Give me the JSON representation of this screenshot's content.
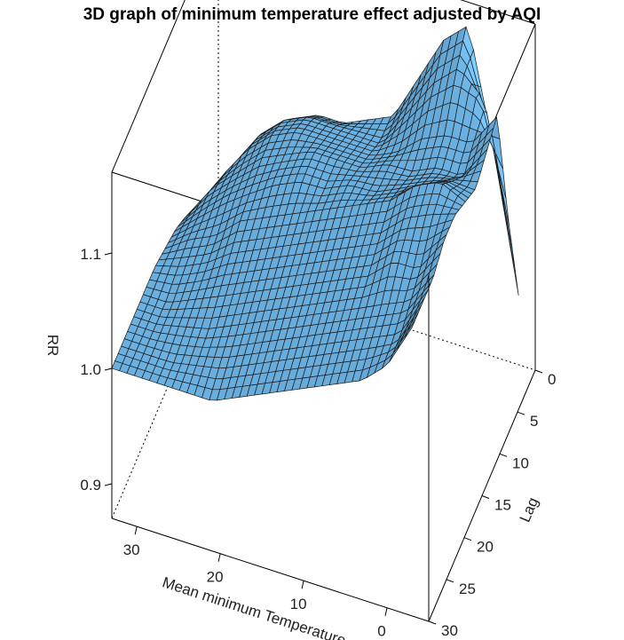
{
  "chart_data": {
    "type": "surface3d",
    "title": "3D graph of minimum temperature effect adjusted by AQI",
    "xlabel": "Mean minimum Temperature",
    "ylabel": "Lag",
    "zlabel": "RR",
    "x_ticks": [
      30,
      20,
      10,
      0
    ],
    "y_ticks": [
      0,
      5,
      10,
      15,
      20,
      25,
      30
    ],
    "z_ticks": [
      "0.9",
      "1.0",
      "1.1"
    ],
    "xlim": [
      -5,
      33
    ],
    "ylim": [
      0,
      30
    ],
    "zlim": [
      0.87,
      1.17
    ],
    "surface_color": "#6ab0e0",
    "mesh_color": "#1a1a1a",
    "temperature_grid": [
      33,
      30,
      27,
      24,
      21,
      18,
      15,
      12,
      9,
      6,
      3,
      0,
      -3
    ],
    "lag_grid": [
      0,
      3,
      6,
      9,
      12,
      15,
      18,
      21,
      24,
      27,
      30
    ],
    "rr": [
      [
        0.895,
        0.93,
        0.96,
        0.98,
        0.99,
        0.995,
        1.0,
        1.0,
        1.0,
        1.0,
        1.0
      ],
      [
        0.96,
        0.98,
        1.0,
        1.01,
        1.01,
        1.01,
        1.005,
        1.0,
        1.0,
        1.0,
        1.0
      ],
      [
        1.0,
        1.02,
        1.03,
        1.03,
        1.03,
        1.02,
        1.015,
        1.01,
        1.005,
        1.0,
        1.0
      ],
      [
        1.02,
        1.04,
        1.05,
        1.05,
        1.045,
        1.04,
        1.03,
        1.02,
        1.01,
        1.005,
        1.0
      ],
      [
        1.03,
        1.05,
        1.06,
        1.06,
        1.06,
        1.05,
        1.04,
        1.03,
        1.02,
        1.01,
        1.0
      ],
      [
        1.03,
        1.05,
        1.06,
        1.07,
        1.07,
        1.06,
        1.05,
        1.04,
        1.03,
        1.02,
        1.01
      ],
      [
        1.04,
        1.05,
        1.06,
        1.07,
        1.07,
        1.07,
        1.06,
        1.05,
        1.04,
        1.03,
        1.02
      ],
      [
        1.05,
        1.05,
        1.06,
        1.07,
        1.08,
        1.08,
        1.07,
        1.06,
        1.05,
        1.04,
        1.03
      ],
      [
        1.09,
        1.08,
        1.07,
        1.08,
        1.08,
        1.09,
        1.08,
        1.07,
        1.06,
        1.05,
        1.04
      ],
      [
        1.13,
        1.11,
        1.09,
        1.08,
        1.09,
        1.1,
        1.09,
        1.08,
        1.07,
        1.06,
        1.05
      ],
      [
        1.15,
        1.13,
        1.1,
        1.09,
        1.1,
        1.12,
        1.11,
        1.1,
        1.08,
        1.07,
        1.06
      ],
      [
        1.05,
        1.12,
        1.1,
        1.09,
        1.11,
        1.13,
        1.12,
        1.1,
        1.09,
        1.08,
        1.08
      ],
      [
        0.93,
        1.02,
        1.13,
        1.12,
        1.11,
        1.12,
        1.13,
        1.13,
        1.12,
        1.12,
        1.12
      ]
    ]
  }
}
